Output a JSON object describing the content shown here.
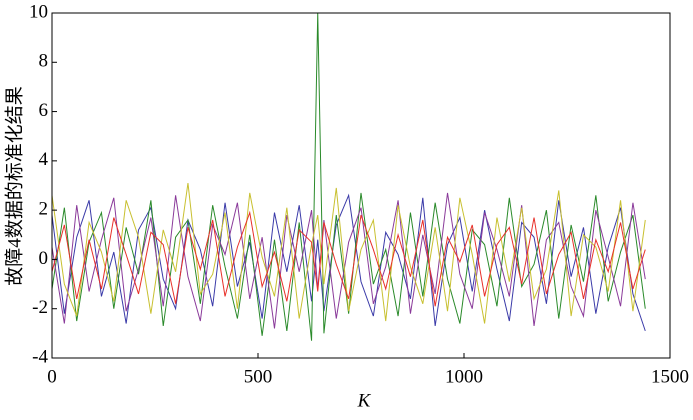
{
  "chart_data": {
    "type": "line",
    "xlabel": "K",
    "ylabel": "故障4数据的标准化结果",
    "xlim": [
      0,
      1500
    ],
    "ylim": [
      -4,
      10
    ],
    "xticks": [
      0,
      500,
      1000,
      1500
    ],
    "yticks": [
      -4,
      -2,
      0,
      2,
      4,
      6,
      8,
      10
    ],
    "x": [
      0,
      30,
      60,
      90,
      120,
      150,
      180,
      210,
      240,
      270,
      300,
      330,
      360,
      390,
      420,
      450,
      480,
      510,
      540,
      570,
      600,
      630,
      645,
      660,
      690,
      720,
      750,
      780,
      810,
      840,
      870,
      900,
      930,
      960,
      990,
      1020,
      1050,
      1080,
      1110,
      1140,
      1170,
      1200,
      1230,
      1260,
      1290,
      1320,
      1350,
      1380,
      1410,
      1440
    ],
    "series": [
      {
        "color": "#3a3aa8",
        "values": [
          1.8,
          -2.2,
          0.9,
          2.4,
          -1.5,
          0.3,
          -2.6,
          1.2,
          2.1,
          -0.8,
          -2.0,
          1.6,
          0.4,
          -1.9,
          2.3,
          -1.1,
          0.7,
          -2.4,
          1.9,
          -0.5,
          2.2,
          -1.7,
          0.8,
          -2.1,
          1.4,
          2.6,
          -0.9,
          -2.3,
          1.1,
          0.2,
          -1.6,
          2.5,
          -2.7,
          0.6,
          1.7,
          -1.3,
          2.0,
          -0.4,
          -2.5,
          1.5,
          0.9,
          -1.8,
          2.4,
          -0.7,
          1.3,
          -2.2,
          0.5,
          2.1,
          -1.4,
          -2.9
        ]
      },
      {
        "color": "#2a8a2a",
        "values": [
          -1.2,
          2.1,
          -2.5,
          0.7,
          1.9,
          -2.0,
          1.3,
          -0.6,
          2.4,
          -2.7,
          0.9,
          1.6,
          -1.8,
          2.2,
          -0.3,
          -2.4,
          1.0,
          -3.1,
          0.8,
          -2.9,
          1.5,
          -3.3,
          10,
          -3.0,
          1.8,
          -2.2,
          2.7,
          -1.0,
          0.4,
          -2.3,
          1.9,
          -1.5,
          2.3,
          -0.8,
          -2.6,
          1.2,
          0.6,
          -1.9,
          2.5,
          -1.1,
          -0.2,
          2.0,
          -2.4,
          1.4,
          -0.9,
          2.6,
          -1.7,
          0.3,
          1.8,
          -2.0
        ]
      },
      {
        "color": "#8a3a9a",
        "values": [
          0.5,
          -2.6,
          2.2,
          -1.3,
          0.8,
          2.5,
          -2.1,
          -0.4,
          1.7,
          -1.9,
          2.6,
          -0.7,
          -2.5,
          1.4,
          0.2,
          2.3,
          -1.6,
          0.9,
          -2.8,
          1.8,
          -0.5,
          2.0,
          -1.2,
          1.6,
          -2.4,
          0.7,
          2.1,
          -1.8,
          -0.3,
          2.4,
          -2.2,
          1.0,
          -1.4,
          2.7,
          -0.6,
          -2.0,
          1.9,
          0.4,
          -1.5,
          2.2,
          -2.7,
          0.8,
          1.5,
          -1.1,
          -2.3,
          2.0,
          0.1,
          -1.9,
          2.3,
          -0.8
        ]
      },
      {
        "color": "#c8c030",
        "values": [
          2.6,
          -1.0,
          -2.3,
          1.5,
          0.3,
          -1.7,
          2.4,
          0.9,
          -2.2,
          1.2,
          -0.5,
          3.1,
          -1.4,
          -0.6,
          1.9,
          -2.0,
          2.7,
          0.1,
          -1.5,
          2.1,
          -2.4,
          0.6,
          1.8,
          -1.0,
          2.9,
          -2.1,
          0.4,
          1.6,
          -2.5,
          2.2,
          -0.3,
          -1.8,
          1.3,
          -2.1,
          2.5,
          0.2,
          -2.6,
          1.7,
          -0.9,
          2.1,
          -1.6,
          -0.4,
          2.8,
          -2.3,
          1.0,
          0.5,
          -1.3,
          2.4,
          -2.1,
          1.6
        ]
      },
      {
        "color": "#e8302a",
        "values": [
          -0.5,
          1.4,
          -1.6,
          0.8,
          -1.2,
          1.7,
          0.2,
          -1.4,
          1.1,
          0.6,
          -1.8,
          1.3,
          -0.4,
          1.6,
          -1.5,
          0.5,
          1.9,
          -1.1,
          0.3,
          -1.7,
          1.2,
          0.7,
          -1.3,
          1.5,
          -0.2,
          -1.6,
          1.8,
          0.4,
          -1.2,
          1.0,
          -0.7,
          1.6,
          -1.9,
          0.9,
          -0.1,
          1.4,
          -1.5,
          0.6,
          1.3,
          -1.0,
          1.7,
          -1.4,
          0.2,
          1.1,
          -1.6,
          0.8,
          -0.5,
          1.5,
          -1.2,
          0.4
        ]
      }
    ]
  }
}
